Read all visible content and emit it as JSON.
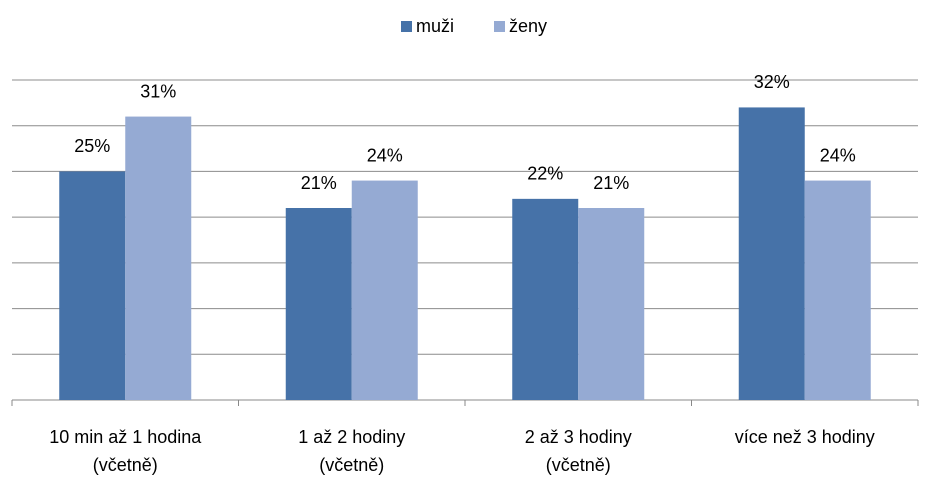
{
  "chart_data": {
    "type": "bar",
    "categories": [
      "10 min až 1 hodina\n(včetně)",
      "1 až 2 hodiny\n(včetně)",
      "2 až 3 hodiny\n(včetně)",
      "více než 3 hodiny"
    ],
    "series": [
      {
        "name": "muži",
        "color": "#4672a8",
        "values": [
          25,
          21,
          22,
          32
        ],
        "value_labels": [
          "25%",
          "21%",
          "22%",
          "32%"
        ]
      },
      {
        "name": "ženy",
        "color": "#95aad3",
        "values": [
          31,
          24,
          21,
          24
        ],
        "value_labels": [
          "31%",
          "24%",
          "21%",
          "24%"
        ]
      }
    ],
    "ylim": [
      0,
      35
    ],
    "yticks": [
      0,
      5,
      10,
      15,
      20,
      25,
      30,
      35
    ],
    "grid": true,
    "legend": "top"
  }
}
